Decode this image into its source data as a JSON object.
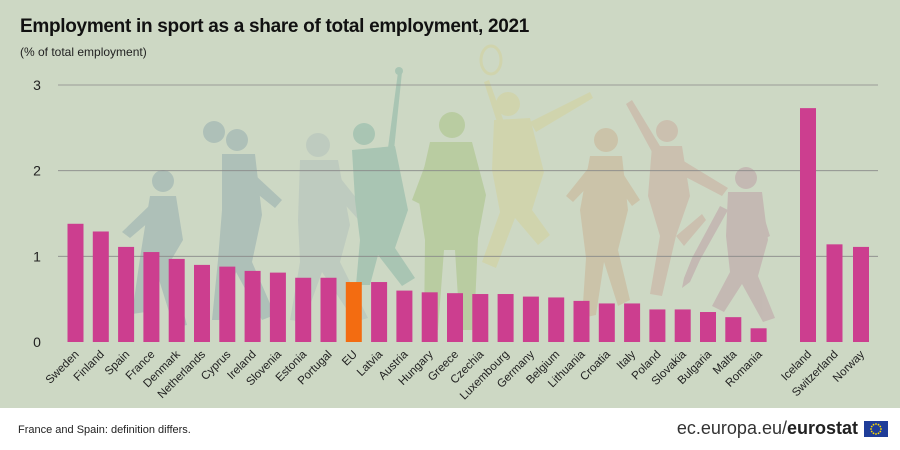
{
  "header": {
    "title": "Employment in sport as a share of total employment, 2021",
    "subtitle": "(% of total employment)"
  },
  "footer": {
    "footnote": "France and Spain: definition differs.",
    "source_domain": "ec.europa.eu/",
    "source_brand": "eurostat",
    "flag_icon": "eu-flag-icon"
  },
  "colors": {
    "bar": "#cc3e8f",
    "highlight": "#f36c11",
    "background": "#cdd8c4",
    "gridline": "#888888"
  },
  "chart_data": {
    "type": "bar",
    "title": "Employment in sport as a share of total employment, 2021",
    "subtitle": "(% of total employment)",
    "xlabel": "",
    "ylabel": "",
    "ylim": [
      0,
      3
    ],
    "yticks": [
      0,
      1,
      2,
      3
    ],
    "grid": true,
    "highlight_category": "EU",
    "groups": [
      {
        "categories": [
          "Sweden",
          "Finland",
          "Spain",
          "France",
          "Denmark",
          "Netherlands",
          "Cyprus",
          "Ireland",
          "Slovenia",
          "Estonia",
          "Portugal",
          "EU",
          "Latvia",
          "Austria",
          "Hungary",
          "Greece",
          "Czechia",
          "Luxembourg",
          "Germany",
          "Belgium",
          "Lithuania",
          "Croatia",
          "Italy",
          "Poland",
          "Slovakia",
          "Bulgaria",
          "Malta",
          "Romania"
        ],
        "values": [
          1.38,
          1.29,
          1.11,
          1.05,
          0.97,
          0.9,
          0.88,
          0.83,
          0.81,
          0.75,
          0.75,
          0.7,
          0.7,
          0.6,
          0.58,
          0.57,
          0.56,
          0.56,
          0.53,
          0.52,
          0.48,
          0.45,
          0.45,
          0.38,
          0.38,
          0.35,
          0.29,
          0.16
        ]
      },
      {
        "categories": [
          "Iceland",
          "Switzerland",
          "Norway"
        ],
        "values": [
          2.73,
          1.14,
          1.11
        ]
      }
    ]
  }
}
